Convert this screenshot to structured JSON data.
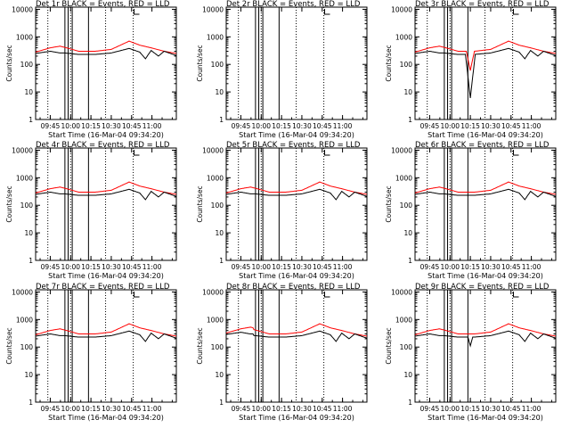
{
  "colors": {
    "events": "#000000",
    "lld": "#ff0000",
    "axis": "#000000",
    "background": "#ffffff"
  },
  "shared": {
    "ylabel": "Counts/sec",
    "xlabel": "Start Time (16-Mar-04 09:34:20)",
    "x_ticks": [
      "09:45",
      "10:00",
      "10:15",
      "10:30",
      "10:45",
      "11:00"
    ],
    "y_ticks": [
      "1",
      "10",
      "100",
      "1000",
      "10000"
    ]
  },
  "chart_data": [
    {
      "title": "Det 1r BLACK = Events, RED = LLD",
      "type": "line",
      "xlabel": "Start Time (16-Mar-04 09:34:20)",
      "ylabel": "Counts/sec",
      "ylim": [
        1,
        12000
      ],
      "dip": null,
      "dip_red": null,
      "step_x": null
    },
    {
      "title": "Det 2r BLACK = Events, RED = LLD",
      "type": "line",
      "xlabel": "Start Time (16-Mar-04 09:34:20)",
      "ylabel": "Counts/sec",
      "ylim": [
        1,
        12000
      ],
      "empty": true
    },
    {
      "title": "Det 3r BLACK = Events, RED = LLD",
      "type": "line",
      "xlabel": "Start Time (16-Mar-04 09:34:20)",
      "ylabel": "Counts/sec",
      "ylim": [
        1,
        12000
      ],
      "dip": {
        "center": 10.25,
        "width": 0.06,
        "min": 6
      },
      "dip_red": {
        "center": 10.25,
        "min": 60
      }
    },
    {
      "title": "Det 4r BLACK = Events, RED = LLD",
      "type": "line",
      "xlabel": "Start Time (16-Mar-04 09:34:20)",
      "ylabel": "Counts/sec",
      "ylim": [
        1,
        12000
      ]
    },
    {
      "title": "Det 5r BLACK = Events, RED = LLD",
      "type": "line",
      "xlabel": "Start Time (16-Mar-04 09:34:20)",
      "ylabel": "Counts/sec",
      "ylim": [
        1,
        12000
      ]
    },
    {
      "title": "Det 6r BLACK = Events, RED = LLD",
      "type": "line",
      "xlabel": "Start Time (16-Mar-04 09:34:20)",
      "ylabel": "Counts/sec",
      "ylim": [
        1,
        12000
      ]
    },
    {
      "title": "Det 7r BLACK = Events, RED = LLD",
      "type": "line",
      "xlabel": "Start Time (16-Mar-04 09:34:20)",
      "ylabel": "Counts/sec",
      "ylim": [
        1,
        12000
      ]
    },
    {
      "title": "Det 8r BLACK = Events, RED = LLD",
      "type": "line",
      "xlabel": "Start Time (16-Mar-04 09:34:20)",
      "ylabel": "Counts/sec",
      "ylim": [
        1,
        12000
      ],
      "step_x": 9.9
    },
    {
      "title": "Det 9r BLACK = Events, RED = LLD",
      "type": "line",
      "xlabel": "Start Time (16-Mar-04 09:34:20)",
      "ylabel": "Counts/sec",
      "ylim": [
        1,
        12000
      ],
      "dip": {
        "center": 10.25,
        "width": 0.03,
        "min": 110
      }
    }
  ],
  "series_model": {
    "x_range_hours": [
      9.57,
      11.3
    ],
    "dotted_lines_hours": [
      9.72,
      10.0,
      10.43,
      10.77
    ],
    "solid_lines_hours": [
      9.93,
      9.97,
      10.02,
      10.22
    ],
    "events_points": [
      [
        9.57,
        250
      ],
      [
        9.75,
        300
      ],
      [
        9.87,
        260
      ],
      [
        9.93,
        260
      ],
      [
        10.1,
        230
      ],
      [
        10.3,
        230
      ],
      [
        10.5,
        260
      ],
      [
        10.72,
        380
      ],
      [
        10.85,
        280
      ],
      [
        10.92,
        160
      ],
      [
        10.99,
        320
      ],
      [
        11.08,
        200
      ],
      [
        11.15,
        300
      ],
      [
        11.3,
        210
      ]
    ],
    "lld_points": [
      [
        9.57,
        280
      ],
      [
        9.75,
        400
      ],
      [
        9.87,
        460
      ],
      [
        9.95,
        400
      ],
      [
        10.1,
        300
      ],
      [
        10.3,
        300
      ],
      [
        10.5,
        350
      ],
      [
        10.72,
        700
      ],
      [
        10.85,
        500
      ],
      [
        10.99,
        400
      ],
      [
        11.15,
        300
      ],
      [
        11.3,
        250
      ]
    ]
  }
}
